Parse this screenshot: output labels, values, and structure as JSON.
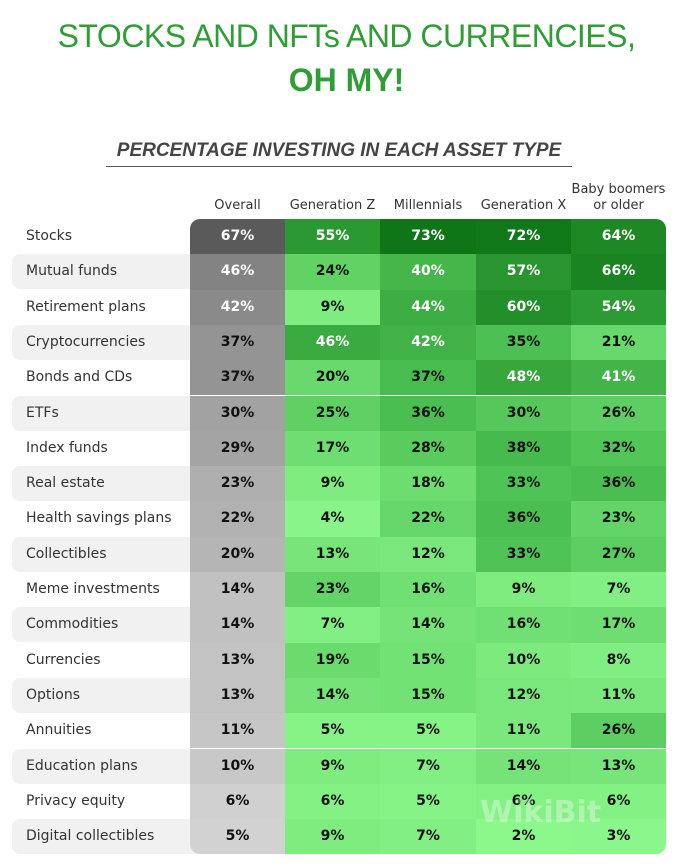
{
  "title_line1": "STOCKS AND NFTs AND CURRENCIES,",
  "title_line2": "OH MY!",
  "chart_data": {
    "type": "heatmap",
    "title": "PERCENTAGE INVESTING IN EACH ASSET TYPE",
    "columns": [
      "Overall",
      "Generation Z",
      "Millennials",
      "Generation X",
      "Baby boomers or older"
    ],
    "rows": [
      "Stocks",
      "Mutual funds",
      "Retirement plans",
      "Cryptocurrencies",
      "Bonds and CDs",
      "ETFs",
      "Index funds",
      "Real estate",
      "Health savings plans",
      "Collectibles",
      "Meme investments",
      "Commodities",
      "Currencies",
      "Options",
      "Annuities",
      "Education plans",
      "Privacy equity",
      "Digital collectibles"
    ],
    "values": [
      [
        67,
        55,
        73,
        72,
        64
      ],
      [
        46,
        24,
        40,
        57,
        66
      ],
      [
        42,
        9,
        44,
        60,
        54
      ],
      [
        37,
        46,
        42,
        35,
        21
      ],
      [
        37,
        20,
        37,
        48,
        41
      ],
      [
        30,
        25,
        36,
        30,
        26
      ],
      [
        29,
        17,
        28,
        38,
        32
      ],
      [
        23,
        9,
        18,
        33,
        36
      ],
      [
        22,
        4,
        22,
        36,
        23
      ],
      [
        20,
        13,
        12,
        33,
        27
      ],
      [
        14,
        23,
        16,
        9,
        7
      ],
      [
        14,
        7,
        14,
        16,
        17
      ],
      [
        13,
        19,
        15,
        10,
        8
      ],
      [
        13,
        14,
        15,
        12,
        11
      ],
      [
        11,
        5,
        5,
        11,
        26
      ],
      [
        10,
        9,
        7,
        14,
        13
      ],
      [
        6,
        6,
        5,
        6,
        6
      ],
      [
        5,
        9,
        7,
        2,
        3
      ]
    ],
    "unit": "%",
    "color_scale": {
      "overall": [
        "#d2d2d2",
        "#5a5a5a"
      ],
      "generations": [
        "#90fb90",
        "#0e7616"
      ]
    }
  },
  "watermark": "WikiBit"
}
